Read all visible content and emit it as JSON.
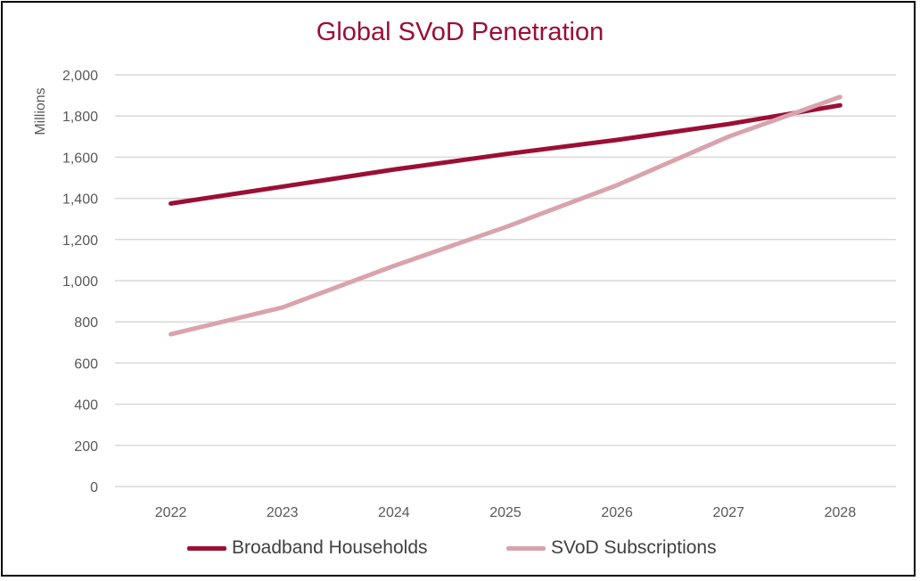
{
  "chart_data": {
    "type": "line",
    "title": "Global SVoD Penetration",
    "xlabel": "",
    "ylabel": "Millions",
    "categories": [
      "2022",
      "2023",
      "2024",
      "2025",
      "2026",
      "2027",
      "2028"
    ],
    "ylim": [
      0,
      2000
    ],
    "yticks": [
      0,
      200,
      400,
      600,
      800,
      1000,
      1200,
      1400,
      1600,
      1800,
      2000
    ],
    "ytick_labels": [
      "0",
      "200",
      "400",
      "600",
      "800",
      "1,000",
      "1,200",
      "1,400",
      "1,600",
      "1,800",
      "2,000"
    ],
    "grid": true,
    "legend_position": "bottom",
    "series": [
      {
        "name": "Broadband Households",
        "color": "#9b0f34",
        "values": [
          1375,
          1457,
          1540,
          1615,
          1684,
          1761,
          1852
        ]
      },
      {
        "name": "SVoD Subscriptions",
        "color": "#d9a3ae",
        "values": [
          740,
          870,
          1072,
          1260,
          1464,
          1700,
          1893
        ]
      }
    ]
  }
}
